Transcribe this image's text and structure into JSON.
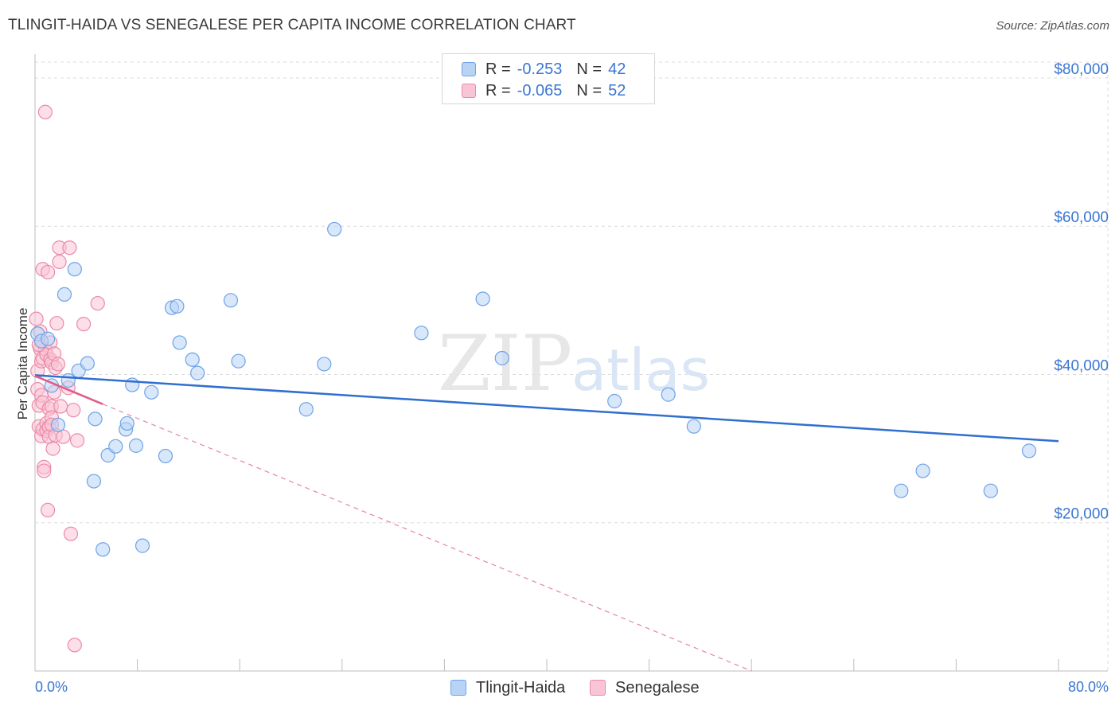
{
  "header": {
    "title": "TLINGIT-HAIDA VS SENEGALESE PER CAPITA INCOME CORRELATION CHART",
    "source": "Source: ZipAtlas.com"
  },
  "legend": {
    "rows": [
      {
        "r_label": "R =",
        "r_value": "-0.253",
        "n_label": "N =",
        "n_value": "42"
      },
      {
        "r_label": "R =",
        "r_value": "-0.065",
        "n_label": "N =",
        "n_value": "52"
      }
    ]
  },
  "bottom_legend": {
    "series1": "Tlingit-Haida",
    "series2": "Senegalese"
  },
  "watermark": {
    "zip": "ZIP",
    "atlas": "atlas"
  },
  "colors": {
    "blue_fill": "#b8d4f5",
    "blue_stroke": "#6fa3e6",
    "blue_line": "#2f6fd0",
    "pink_fill": "#f9c5d6",
    "pink_stroke": "#ec8aa9",
    "pink_line": "#e05c88",
    "axis_text": "#3a76d2",
    "grid": "#dcdcdc"
  },
  "chart_data": {
    "type": "scatter",
    "title": "TLINGIT-HAIDA VS SENEGALESE PER CAPITA INCOME CORRELATION CHART",
    "xlabel": "",
    "ylabel": "Per Capita Income",
    "xlim": [
      0,
      80
    ],
    "ylim": [
      0,
      83000
    ],
    "x_tick_labels": {
      "min": "0.0%",
      "max": "80.0%"
    },
    "y_ticks": [
      {
        "value": 20000,
        "label": "$20,000"
      },
      {
        "value": 40000,
        "label": "$40,000"
      },
      {
        "value": 60000,
        "label": "$60,000"
      },
      {
        "value": 80000,
        "label": "$80,000"
      }
    ],
    "series": [
      {
        "name": "Tlingit-Haida",
        "r": -0.253,
        "n": 42,
        "trend": {
          "x0": 0,
          "y0": 39900,
          "x1": 80,
          "y1": 31000,
          "dashed_extension": false
        },
        "points": [
          [
            0.2,
            45500
          ],
          [
            0.5,
            44500
          ],
          [
            1.0,
            44800
          ],
          [
            1.3,
            38500
          ],
          [
            1.8,
            33200
          ],
          [
            2.3,
            50800
          ],
          [
            2.6,
            39200
          ],
          [
            3.1,
            54200
          ],
          [
            3.4,
            40500
          ],
          [
            4.1,
            41500
          ],
          [
            4.6,
            25600
          ],
          [
            4.7,
            34000
          ],
          [
            5.3,
            16400
          ],
          [
            5.7,
            29100
          ],
          [
            6.3,
            30300
          ],
          [
            7.1,
            32600
          ],
          [
            7.2,
            33400
          ],
          [
            7.6,
            38600
          ],
          [
            7.9,
            30400
          ],
          [
            8.4,
            16900
          ],
          [
            9.1,
            37600
          ],
          [
            10.2,
            29000
          ],
          [
            10.7,
            49000
          ],
          [
            11.1,
            49200
          ],
          [
            11.3,
            44300
          ],
          [
            12.3,
            42000
          ],
          [
            12.7,
            40200
          ],
          [
            15.3,
            50000
          ],
          [
            15.9,
            41800
          ],
          [
            21.2,
            35300
          ],
          [
            22.6,
            41400
          ],
          [
            23.4,
            59600
          ],
          [
            30.2,
            45600
          ],
          [
            35.0,
            50200
          ],
          [
            36.5,
            42200
          ],
          [
            45.3,
            36400
          ],
          [
            49.5,
            37300
          ],
          [
            51.5,
            33000
          ],
          [
            67.7,
            24300
          ],
          [
            69.4,
            27000
          ],
          [
            74.7,
            24300
          ],
          [
            77.7,
            29700
          ]
        ]
      },
      {
        "name": "Senegalese",
        "r": -0.065,
        "n": 52,
        "trend": {
          "x0": 0,
          "y0": 39800,
          "x1": 5.3,
          "y1": 36000,
          "dashed_to": {
            "x": 56.0,
            "y": 0
          }
        },
        "points": [
          [
            0.1,
            47500
          ],
          [
            0.2,
            40500
          ],
          [
            0.2,
            38000
          ],
          [
            0.3,
            35800
          ],
          [
            0.3,
            33000
          ],
          [
            0.4,
            45800
          ],
          [
            0.4,
            43500
          ],
          [
            0.5,
            41800
          ],
          [
            0.5,
            37200
          ],
          [
            0.5,
            31700
          ],
          [
            0.6,
            54200
          ],
          [
            0.6,
            42200
          ],
          [
            0.6,
            36200
          ],
          [
            0.6,
            32600
          ],
          [
            0.7,
            27500
          ],
          [
            0.7,
            27000
          ],
          [
            0.8,
            75400
          ],
          [
            0.8,
            43400
          ],
          [
            0.9,
            42700
          ],
          [
            0.9,
            33400
          ],
          [
            0.9,
            32400
          ],
          [
            1.0,
            21700
          ],
          [
            1.0,
            53800
          ],
          [
            1.1,
            35400
          ],
          [
            1.1,
            32900
          ],
          [
            1.1,
            31600
          ],
          [
            1.2,
            44300
          ],
          [
            1.2,
            42000
          ],
          [
            1.3,
            41600
          ],
          [
            1.3,
            35700
          ],
          [
            1.3,
            34200
          ],
          [
            1.3,
            33200
          ],
          [
            1.4,
            30000
          ],
          [
            1.5,
            42800
          ],
          [
            1.5,
            37600
          ],
          [
            1.6,
            40900
          ],
          [
            1.6,
            31800
          ],
          [
            1.7,
            46900
          ],
          [
            1.8,
            41400
          ],
          [
            1.9,
            57100
          ],
          [
            1.9,
            55200
          ],
          [
            2.0,
            35700
          ],
          [
            2.2,
            31600
          ],
          [
            2.6,
            38200
          ],
          [
            2.7,
            57100
          ],
          [
            2.8,
            18500
          ],
          [
            3.0,
            35200
          ],
          [
            3.1,
            3500
          ],
          [
            3.3,
            31100
          ],
          [
            3.8,
            46800
          ],
          [
            4.9,
            49600
          ],
          [
            0.3,
            44000
          ]
        ]
      }
    ]
  }
}
